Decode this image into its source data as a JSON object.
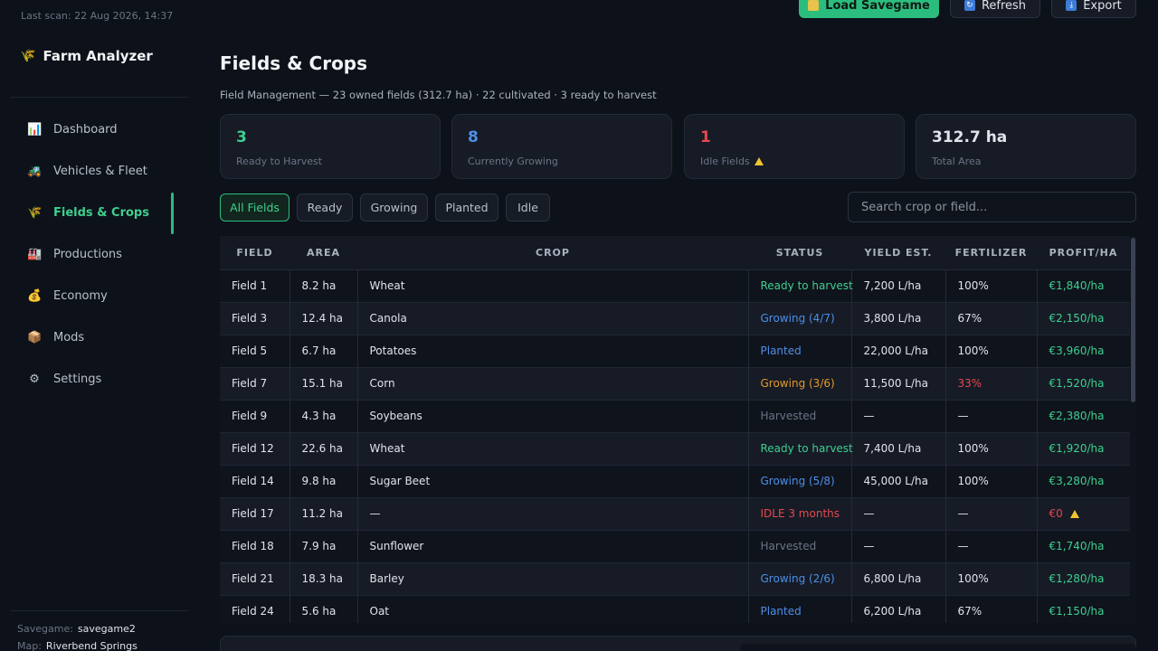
{
  "sidebar": {
    "last_scan": "Last scan: 22 Aug 2026, 14:37",
    "brand": "Farm Analyzer",
    "items": [
      {
        "label": "Dashboard",
        "icon": "chart-icon"
      },
      {
        "label": "Vehicles & Fleet",
        "icon": "tractor-icon"
      },
      {
        "label": "Fields & Crops",
        "icon": "wheat-icon"
      },
      {
        "label": "Productions",
        "icon": "factory-icon"
      },
      {
        "label": "Economy",
        "icon": "money-bag-icon"
      },
      {
        "label": "Mods",
        "icon": "box-icon"
      },
      {
        "label": "Settings",
        "icon": "gear-icon"
      }
    ],
    "savegame_label": "Savegame:",
    "savegame_value": "savegame2",
    "map_label": "Map:",
    "map_value": "Riverbend Springs"
  },
  "toolbar": {
    "load_label": "Load Savegame",
    "refresh_label": "Refresh",
    "export_label": "Export"
  },
  "header": {
    "title": "Fields & Crops",
    "subtitle": "Field Management — 23 owned fields (312.7 ha)  ·  22 cultivated  ·  3 ready to harvest"
  },
  "stats": [
    {
      "value": "3",
      "label": "Ready to Harvest",
      "color": "#3ecf8e"
    },
    {
      "value": "8",
      "label": "Currently Growing",
      "color": "#4d8fe6"
    },
    {
      "value": "1",
      "label": "Idle Fields",
      "color": "#e5484d"
    },
    {
      "value": "312.7 ha",
      "label": "Total Area",
      "color": "#dfe3ea"
    }
  ],
  "filters": [
    "All Fields",
    "Ready",
    "Growing",
    "Planted",
    "Idle"
  ],
  "search": {
    "placeholder": "Search crop or field..."
  },
  "table": {
    "headers": [
      "FIELD",
      "AREA",
      "CROP",
      "STATUS",
      "YIELD EST.",
      "FERTILIZER",
      "PROFIT/HA"
    ],
    "rows": [
      [
        "Field 1",
        "8.2 ha",
        "Wheat",
        "Ready to harvest",
        "7,200 L/ha",
        "100%",
        "€1,840/ha"
      ],
      [
        "Field 3",
        "12.4 ha",
        "Canola",
        "Growing (4/7)",
        "3,800 L/ha",
        "67%",
        "€2,150/ha"
      ],
      [
        "Field 5",
        "6.7 ha",
        "Potatoes",
        "Planted",
        "22,000 L/ha",
        "100%",
        "€3,960/ha"
      ],
      [
        "Field 7",
        "15.1 ha",
        "Corn",
        "Growing (3/6)",
        "11,500 L/ha",
        "33%",
        "€1,520/ha"
      ],
      [
        "Field 9",
        "4.3 ha",
        "Soybeans",
        "Harvested",
        "—",
        "—",
        "€2,380/ha"
      ],
      [
        "Field 12",
        "22.6 ha",
        "Wheat",
        "Ready to harvest",
        "7,400 L/ha",
        "100%",
        "€1,920/ha"
      ],
      [
        "Field 14",
        "9.8 ha",
        "Sugar Beet",
        "Growing (5/8)",
        "45,000 L/ha",
        "100%",
        "€3,280/ha"
      ],
      [
        "Field 17",
        "11.2 ha",
        "—",
        "IDLE 3 months",
        "—",
        "—",
        "€0"
      ],
      [
        "Field 18",
        "7.9 ha",
        "Sunflower",
        "Harvested",
        "—",
        "—",
        "€1,740/ha"
      ],
      [
        "Field 21",
        "18.3 ha",
        "Barley",
        "Growing (2/6)",
        "6,800 L/ha",
        "100%",
        "€1,280/ha"
      ],
      [
        "Field 24",
        "5.6 ha",
        "Oat",
        "Planted",
        "6,200 L/ha",
        "67%",
        "€1,150/ha"
      ]
    ]
  }
}
